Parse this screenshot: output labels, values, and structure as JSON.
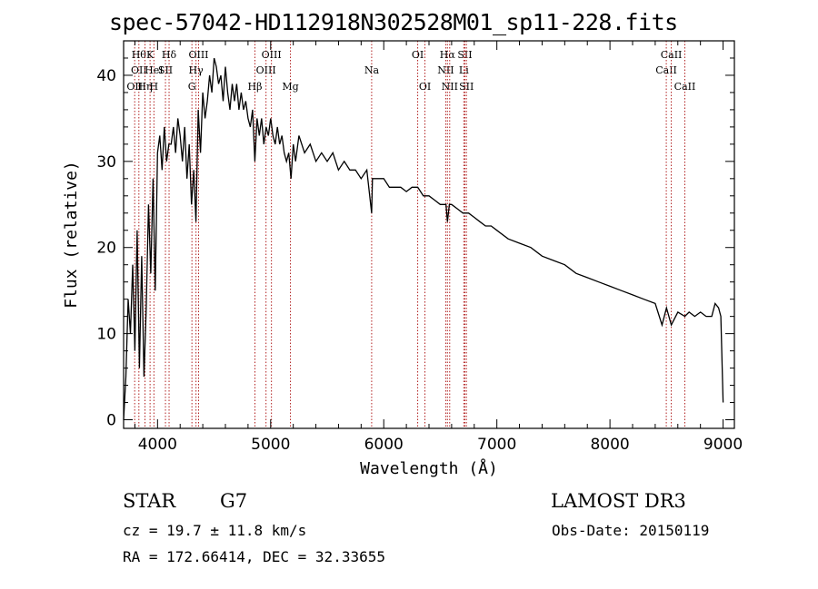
{
  "chart_data": {
    "type": "line",
    "title": "spec-57042-HD112918N302528M01_sp11-228.fits",
    "xlabel": "Wavelength (Å)",
    "ylabel": "Flux (relative)",
    "xlim": [
      3700,
      9100
    ],
    "ylim": [
      -1,
      44
    ],
    "xticks": [
      4000,
      5000,
      6000,
      7000,
      8000,
      9000
    ],
    "yticks": [
      0,
      10,
      20,
      30,
      40
    ],
    "grid": false,
    "series": [
      {
        "name": "flux",
        "x": [
          3700,
          3720,
          3740,
          3760,
          3780,
          3800,
          3820,
          3840,
          3860,
          3880,
          3900,
          3920,
          3940,
          3960,
          3980,
          4000,
          4020,
          4040,
          4060,
          4080,
          4100,
          4120,
          4140,
          4160,
          4180,
          4200,
          4220,
          4240,
          4260,
          4280,
          4300,
          4320,
          4340,
          4360,
          4380,
          4400,
          4420,
          4440,
          4460,
          4480,
          4500,
          4520,
          4540,
          4560,
          4580,
          4600,
          4620,
          4640,
          4660,
          4680,
          4700,
          4720,
          4740,
          4760,
          4780,
          4800,
          4820,
          4840,
          4860,
          4880,
          4900,
          4920,
          4940,
          4960,
          4980,
          5000,
          5020,
          5040,
          5060,
          5080,
          5100,
          5120,
          5140,
          5160,
          5180,
          5200,
          5220,
          5250,
          5300,
          5350,
          5400,
          5450,
          5500,
          5550,
          5600,
          5650,
          5700,
          5750,
          5800,
          5850,
          5893,
          5900,
          5950,
          6000,
          6050,
          6100,
          6150,
          6200,
          6250,
          6300,
          6350,
          6400,
          6450,
          6500,
          6550,
          6563,
          6580,
          6600,
          6650,
          6700,
          6750,
          6800,
          6850,
          6900,
          6950,
          7000,
          7100,
          7200,
          7300,
          7400,
          7500,
          7600,
          7700,
          7800,
          7900,
          8000,
          8100,
          8200,
          8300,
          8400,
          8460,
          8500,
          8542,
          8600,
          8662,
          8700,
          8750,
          8800,
          8850,
          8900,
          8930,
          8960,
          8980,
          9000
        ],
        "y": [
          0,
          5,
          14,
          10,
          18,
          8,
          22,
          6,
          19,
          5,
          13,
          25,
          17,
          28,
          15,
          31,
          33,
          29,
          34,
          30,
          32,
          32,
          34,
          31,
          35,
          33,
          30,
          34,
          28,
          32,
          25,
          29,
          23,
          36,
          31,
          38,
          35,
          37,
          40,
          38,
          42,
          41,
          39,
          40,
          37,
          41,
          38,
          36,
          39,
          37,
          39,
          36,
          38,
          36,
          37,
          35,
          34,
          36,
          30,
          35,
          33,
          35,
          32,
          34,
          33,
          35,
          33,
          32,
          34,
          32,
          33,
          31,
          30,
          31,
          28,
          32,
          30,
          33,
          31,
          32,
          30,
          31,
          30,
          31,
          29,
          30,
          29,
          29,
          28,
          29,
          24,
          28,
          28,
          28,
          27,
          27,
          27,
          26.5,
          27,
          27,
          26,
          26,
          25.5,
          25,
          25,
          23,
          25,
          25,
          24.5,
          24,
          24,
          23.5,
          23,
          22.5,
          22.5,
          22,
          21,
          20.5,
          20,
          19,
          18.5,
          18,
          17,
          16.5,
          16,
          15.5,
          15,
          14.5,
          14,
          13.5,
          11,
          13,
          11,
          12.5,
          12,
          12.5,
          12,
          12.5,
          12,
          12,
          13.5,
          13,
          12,
          2
        ]
      }
    ],
    "lines": [
      {
        "w": 3798,
        "lbl": [
          "OII"
        ],
        "row": 2
      },
      {
        "w": 3835,
        "lbl": [
          "Hθ",
          "OII"
        ],
        "row": 0
      },
      {
        "w": 3889,
        "lbl": [
          "Hη"
        ],
        "row": 2
      },
      {
        "w": 3934,
        "lbl": [
          "K"
        ],
        "row": 0
      },
      {
        "w": 3968,
        "lbl": [
          "HeI",
          "H"
        ],
        "row": 1
      },
      {
        "w": 4070,
        "lbl": [
          "SII"
        ],
        "row": 1
      },
      {
        "w": 4102,
        "lbl": [
          "Hδ"
        ],
        "row": 0
      },
      {
        "w": 4304,
        "lbl": [
          "G"
        ],
        "row": 2
      },
      {
        "w": 4340,
        "lbl": [
          "Hγ"
        ],
        "row": 1
      },
      {
        "w": 4363,
        "lbl": [
          "OIII"
        ],
        "row": 0
      },
      {
        "w": 4861,
        "lbl": [
          "Hβ"
        ],
        "row": 2
      },
      {
        "w": 4959,
        "lbl": [
          "OIII"
        ],
        "row": 1
      },
      {
        "w": 5007,
        "lbl": [
          "OIII"
        ],
        "row": 0
      },
      {
        "w": 5175,
        "lbl": [
          "Mg"
        ],
        "row": 2
      },
      {
        "w": 5893,
        "lbl": [
          "Na"
        ],
        "row": 1
      },
      {
        "w": 6300,
        "lbl": [
          "OI"
        ],
        "row": 0
      },
      {
        "w": 6364,
        "lbl": [
          "OI"
        ],
        "row": 2
      },
      {
        "w": 6548,
        "lbl": [
          "NII"
        ],
        "row": 1
      },
      {
        "w": 6563,
        "lbl": [
          "Hα"
        ],
        "row": 0
      },
      {
        "w": 6583,
        "lbl": [
          "NII"
        ],
        "row": 2
      },
      {
        "w": 6708,
        "lbl": [
          "Li"
        ],
        "row": 1
      },
      {
        "w": 6717,
        "lbl": [
          "SII"
        ],
        "row": 0
      },
      {
        "w": 6731,
        "lbl": [
          "SII"
        ],
        "row": 2
      },
      {
        "w": 8498,
        "lbl": [
          "CaII"
        ],
        "row": 1
      },
      {
        "w": 8542,
        "lbl": [
          "CaII"
        ],
        "row": 0
      },
      {
        "w": 8662,
        "lbl": [
          "CaII"
        ],
        "row": 2
      }
    ]
  },
  "info": {
    "class_label": "STAR",
    "subclass": "G7",
    "survey": "LAMOST DR3",
    "cz": "cz = 19.7 ± 11.8 km/s",
    "obs_date": "Obs-Date: 20150119",
    "coords": "RA = 172.66414, DEC =  32.33655"
  },
  "colors": {
    "line_marker": "#b22222",
    "axis": "#000000"
  }
}
